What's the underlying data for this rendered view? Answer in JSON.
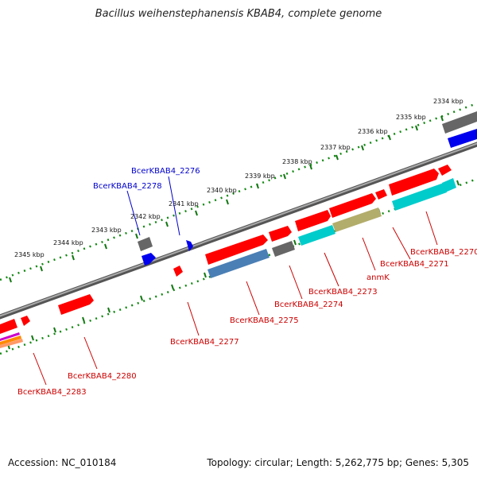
{
  "title": "Bacillus weihenstephanensis KBAB4, complete genome",
  "footer": {
    "accession": "Accession: NC_010184",
    "summary": "Topology: circular; Length: 5,262,775 bp; Genes: 5,305"
  },
  "colors": {
    "red": "#ff0000",
    "gray": "#666666",
    "blue": "#0000ee",
    "cyan": "#00cccc",
    "steel": "#4a7fb5",
    "olive": "#b3ad6b",
    "label_red": "#cc0000",
    "label_blue": "#0000cc",
    "tick_green": "#117711"
  },
  "kbp_labels": [
    "2334 kbp",
    "2335 kbp",
    "2336 kbp",
    "2337 kbp",
    "2338 kbp",
    "2339 kbp",
    "2340 kbp",
    "2341 kbp",
    "2342 kbp",
    "2343 kbp",
    "2344 kbp",
    "2345 kbp"
  ],
  "gene_labels": {
    "g2276": "BcerKBAB4_2276",
    "g2278": "BcerKBAB4_2278",
    "g2270": "BcerKBAB4_2270",
    "g2271": "BcerKBAB4_2271",
    "anmK": "anmK",
    "g2273": "BcerKBAB4_2273",
    "g2274": "BcerKBAB4_2274",
    "g2275": "BcerKBAB4_2275",
    "g2277": "BcerKBAB4_2277",
    "g2280": "BcerKBAB4_2280",
    "g2283": "BcerKBAB4_2283"
  }
}
